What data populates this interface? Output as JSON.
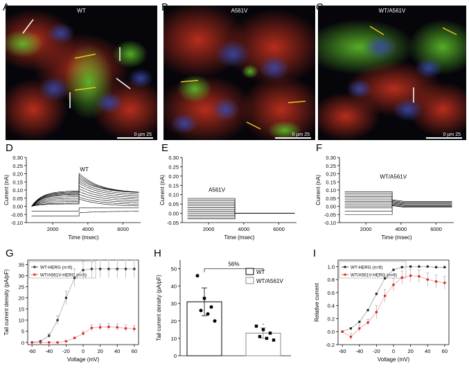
{
  "panels": {
    "A": {
      "letter": "A",
      "title": "WT",
      "scale": "0   µm  25"
    },
    "B": {
      "letter": "B",
      "title": "A561V",
      "scale": "0   µm  25"
    },
    "C": {
      "letter": "C",
      "title": "WT/A561V",
      "scale": "0   µm  25"
    },
    "D": {
      "letter": "D",
      "label": "WT"
    },
    "E": {
      "letter": "E",
      "label": "A561V"
    },
    "F": {
      "letter": "F",
      "label": "WT/A561V"
    },
    "G": {
      "letter": "G"
    },
    "H": {
      "letter": "H"
    },
    "I": {
      "letter": "I"
    }
  },
  "chart_data": [
    {
      "id": "D",
      "type": "line",
      "xlabel": "Time (msec)",
      "ylabel": "Current (nA)",
      "xticks": [
        2000,
        4000,
        6000
      ],
      "yticks": [
        -0.1,
        -0.05,
        0.0,
        0.05,
        0.1,
        0.15,
        0.2,
        0.25,
        0.3
      ],
      "xlim": [
        500,
        7000
      ],
      "ylim": [
        -0.1,
        0.3
      ],
      "inset_label": "WT",
      "series": [
        {
          "step": [
            0.0,
            0.015
          ],
          "tail": 0.0
        },
        {
          "step": [
            0.0,
            0.02
          ],
          "tail": 0.01
        },
        {
          "step": [
            0.0,
            0.03
          ],
          "tail": 0.02
        },
        {
          "step": [
            0.0,
            0.04
          ],
          "tail": 0.03
        },
        {
          "step": [
            0.0,
            0.05
          ],
          "tail": 0.04
        },
        {
          "step": [
            0.0,
            0.06
          ],
          "tail": 0.05
        },
        {
          "step": [
            0.0,
            0.07
          ],
          "tail": 0.06
        },
        {
          "step": [
            0.0,
            0.075
          ],
          "tail": 0.07
        },
        {
          "step": [
            0.0,
            0.08
          ],
          "tail": 0.08
        },
        {
          "step": [
            0.0,
            0.085
          ],
          "tail": 0.08
        },
        {
          "step": [
            0.0,
            0.09
          ],
          "tail": 0.08
        },
        {
          "step": [
            0.0,
            0.095
          ],
          "tail": 0.08
        },
        {
          "step": [
            -0.03,
            -0.03
          ],
          "tail": -0.01
        },
        {
          "step": [
            -0.06,
            -0.06
          ],
          "tail": -0.03
        }
      ]
    },
    {
      "id": "E",
      "type": "line",
      "xlabel": "Time (msec)",
      "ylabel": "Current (nA)",
      "xticks": [
        2000,
        4000,
        6000
      ],
      "yticks": [
        -0.05,
        0.0,
        0.05,
        0.1,
        0.15,
        0.2,
        0.25,
        0.3
      ],
      "xlim": [
        500,
        7000
      ],
      "ylim": [
        -0.05,
        0.3
      ],
      "inset_label": "A561V",
      "series_levels": [
        0.08,
        0.07,
        0.06,
        0.05,
        0.04,
        0.03,
        0.02,
        0.01,
        0.0,
        -0.01,
        -0.02,
        -0.03
      ],
      "tail": 0.0
    },
    {
      "id": "F",
      "type": "line",
      "xlabel": "Time (msec)",
      "ylabel": "Current (nA)",
      "xticks": [
        2000,
        4000,
        6000
      ],
      "yticks": [
        -0.1,
        -0.05,
        0.0,
        0.05,
        0.1,
        0.15,
        0.2,
        0.25,
        0.3
      ],
      "xlim": [
        500,
        7000
      ],
      "ylim": [
        -0.1,
        0.3
      ],
      "inset_label": "WT/A561V",
      "series_levels": [
        0.09,
        0.08,
        0.07,
        0.06,
        0.05,
        0.04,
        0.03,
        0.02,
        0.01,
        0.0,
        -0.01,
        -0.03,
        -0.05
      ],
      "tail_levels": [
        0.03,
        0.025,
        0.02,
        0.015,
        0.01,
        0.005,
        0.0,
        -0.005
      ]
    },
    {
      "id": "G",
      "type": "scatter",
      "xlabel": "Voltage (mV)",
      "ylabel": "Tail current density (pA/pF)",
      "xticks": [
        -60,
        -40,
        -20,
        0,
        20,
        40,
        60
      ],
      "yticks": [
        0,
        5,
        10,
        15,
        20,
        25,
        30,
        35
      ],
      "xlim": [
        -65,
        65
      ],
      "ylim": [
        -1,
        37
      ],
      "legend": "top-left",
      "series": [
        {
          "name": "WT-HERG (n=6)",
          "color": "#333333",
          "x": [
            -60,
            -50,
            -40,
            -30,
            -20,
            -10,
            0,
            10,
            20,
            30,
            40,
            50,
            60
          ],
          "y": [
            0,
            0.5,
            3,
            10,
            20,
            29,
            32.5,
            33,
            33,
            33,
            33,
            33,
            33
          ],
          "err": [
            0,
            0.5,
            1,
            2,
            3,
            4,
            4,
            4,
            4,
            4,
            4,
            4,
            4
          ]
        },
        {
          "name": "WT/A561V-HERG (n=6)",
          "color": "#e0281e",
          "x": [
            -60,
            -50,
            -40,
            -30,
            -20,
            -10,
            0,
            10,
            20,
            30,
            40,
            50,
            60
          ],
          "y": [
            0,
            0,
            0,
            0,
            0.5,
            2,
            4,
            6.5,
            6.8,
            7,
            6.8,
            6.3,
            6.1
          ],
          "err": [
            0,
            0,
            0,
            0,
            0.3,
            0.5,
            1,
            1.5,
            1.5,
            1.5,
            1.5,
            1.5,
            1.5
          ]
        }
      ]
    },
    {
      "id": "H",
      "type": "bar",
      "ylabel": "Tail current density (pA/pF)",
      "yticks": [
        0,
        10,
        20,
        30,
        40,
        50
      ],
      "ylim": [
        0,
        55
      ],
      "annotation": "56%",
      "categories": [
        "WT",
        "WT/A561V"
      ],
      "values": [
        31,
        13
      ],
      "err": [
        8,
        3
      ],
      "points": [
        [
          46,
          33,
          28,
          26,
          24,
          20
        ],
        [
          17,
          15,
          13,
          11,
          10,
          9
        ]
      ],
      "sig_mark": "*"
    },
    {
      "id": "I",
      "type": "scatter",
      "xlabel": "Voltage (mV)",
      "ylabel": "Relative current",
      "xticks": [
        -60,
        -40,
        -20,
        0,
        20,
        40,
        60
      ],
      "yticks": [
        -0.2,
        0.0,
        0.2,
        0.4,
        0.6,
        0.8,
        1.0
      ],
      "xlim": [
        -65,
        65
      ],
      "ylim": [
        -0.2,
        1.1
      ],
      "legend": "top-left",
      "series": [
        {
          "name": "WT-HERG (n=6)",
          "color": "#222222",
          "x": [
            -60,
            -50,
            -40,
            -30,
            -20,
            -10,
            0,
            10,
            20,
            30,
            40,
            50,
            60
          ],
          "y": [
            0.0,
            0.05,
            0.15,
            0.33,
            0.58,
            0.82,
            0.95,
            0.99,
            1.0,
            1.0,
            1.0,
            0.99,
            0.99
          ],
          "err": [
            0,
            0,
            0,
            0,
            0,
            0,
            0,
            0,
            0,
            0,
            0,
            0,
            0
          ]
        },
        {
          "name": "WT/A561V-HERG (n=6)",
          "color": "#e0281e",
          "x": [
            -60,
            -50,
            -40,
            -30,
            -20,
            -10,
            0,
            10,
            20,
            30,
            40,
            50,
            60
          ],
          "y": [
            0.0,
            -0.08,
            0.05,
            0.14,
            0.3,
            0.55,
            0.72,
            0.83,
            0.86,
            0.85,
            0.8,
            0.77,
            0.75
          ],
          "err": [
            0,
            0.05,
            0.05,
            0.05,
            0.1,
            0.1,
            0.1,
            0.1,
            0.1,
            0.1,
            0.1,
            0.1,
            0.1
          ]
        }
      ]
    }
  ]
}
